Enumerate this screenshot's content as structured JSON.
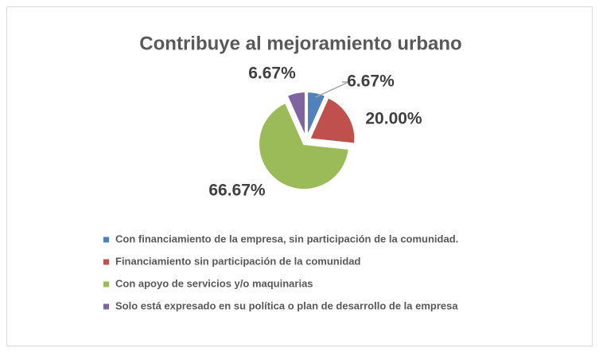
{
  "chart_data": {
    "type": "pie",
    "title": "Contribuye al mejoramiento urbano",
    "categories": [
      "Con financiamiento de la empresa, sin participación de la comunidad.",
      "Financiamiento sin participación de la comunidad",
      "Con apoyo de servicios y/o maquinarias",
      "Solo está expresado en su política o plan de desarrollo de la empresa"
    ],
    "values": [
      6.67,
      20.0,
      66.67,
      6.67
    ],
    "value_labels": [
      "6.67%",
      "20.00%",
      "66.67%",
      "6.67%"
    ],
    "colors": [
      "#4f81bd",
      "#c0504d",
      "#9bbb59",
      "#8064a2"
    ],
    "legend": "bottom"
  }
}
